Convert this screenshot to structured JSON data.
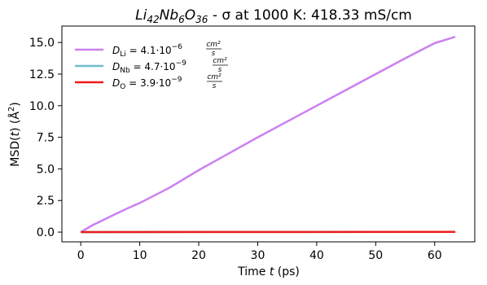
{
  "chart_data": {
    "type": "line",
    "title_main": "Li",
    "title_parts": [
      {
        "t": "Li",
        "sub": "42"
      },
      {
        "t": "Nb",
        "sub": "6"
      },
      {
        "t": "O",
        "sub": "36"
      }
    ],
    "title_suffix": " - σ at 1000 K: 418.33 mS/cm",
    "xlabel_prefix": "Time ",
    "xlabel_var": "t",
    "xlabel_suffix": " (ps)",
    "ylabel": "MSD(t) (Å²)",
    "ylabel_prefix": "MSD(",
    "ylabel_var": "t",
    "ylabel_suffix": ") (Å",
    "ylabel_sup": "2",
    "ylabel_end": ")",
    "xlim": [
      -3.2,
      66.8
    ],
    "ylim": [
      -0.77,
      16.3
    ],
    "xticks": [
      0,
      10,
      20,
      30,
      40,
      50,
      60
    ],
    "xtick_labels": [
      "0",
      "10",
      "20",
      "30",
      "40",
      "50",
      "60"
    ],
    "yticks": [
      0.0,
      2.5,
      5.0,
      7.5,
      10.0,
      12.5,
      15.0
    ],
    "ytick_labels": [
      "0.0",
      "2.5",
      "5.0",
      "7.5",
      "10.0",
      "12.5",
      "15.0"
    ],
    "grid": false,
    "legend_position": "top-left",
    "series": [
      {
        "name": "D_Li = 4.1·10^-6 cm²/s",
        "legend_symbol": "D",
        "legend_sub": "Li",
        "legend_value": " = 4.1·10",
        "legend_exp": "−6",
        "legend_unit_num": "cm²",
        "legend_unit_den": "s",
        "color": "#cc80f0",
        "x": [
          0,
          2,
          4,
          6,
          8,
          10,
          15,
          20,
          25,
          30,
          35,
          40,
          45,
          50,
          55,
          60,
          63.5
        ],
        "y": [
          0,
          0.55,
          1.0,
          1.45,
          1.9,
          2.3,
          3.5,
          4.9,
          6.2,
          7.5,
          8.75,
          10.0,
          11.25,
          12.5,
          13.75,
          14.95,
          15.45
        ]
      },
      {
        "name": "D_Nb = 4.7·10^-9 cm²/s",
        "legend_symbol": "D",
        "legend_sub": "Nb",
        "legend_value": " = 4.7·10",
        "legend_exp": "−9",
        "legend_unit_num": "cm²",
        "legend_unit_den": "s",
        "color": "#6cbdcc",
        "x": [
          0,
          63.5
        ],
        "y": [
          0,
          0.02
        ]
      },
      {
        "name": "D_O = 3.9·10^-9 cm²/s",
        "legend_symbol": "D",
        "legend_sub": "O",
        "legend_value": " = 3.9·10",
        "legend_exp": "−9",
        "legend_unit_num": "cm²",
        "legend_unit_den": "s",
        "color": "#ee1c1c",
        "x": [
          0,
          63.5
        ],
        "y": [
          0,
          0.02
        ]
      }
    ]
  }
}
